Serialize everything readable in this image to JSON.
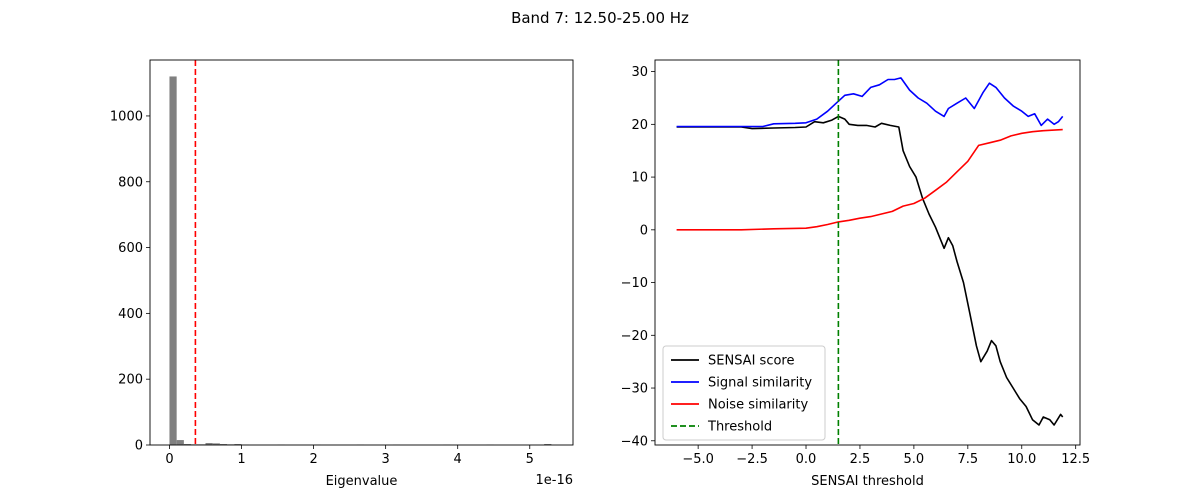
{
  "figure": {
    "title": "Band 7: 12.50-25.00 Hz"
  },
  "chart_data": [
    {
      "type": "bar",
      "subtype": "histogram",
      "xlabel": "Eigenvalue",
      "x_offset_label": "1e-16",
      "ylabel": "",
      "xlim": [
        -0.27,
        5.6
      ],
      "ylim": [
        0,
        1170
      ],
      "xticks": [
        0,
        1,
        2,
        3,
        4,
        5
      ],
      "yticks": [
        0,
        200,
        400,
        600,
        800,
        1000
      ],
      "bin_width": 0.1,
      "bar_color": "#808080",
      "bins": [
        {
          "x": 0.0,
          "count": 1120
        },
        {
          "x": 0.1,
          "count": 15
        },
        {
          "x": 0.2,
          "count": 3
        },
        {
          "x": 0.3,
          "count": 2
        },
        {
          "x": 0.4,
          "count": 2
        },
        {
          "x": 0.5,
          "count": 6
        },
        {
          "x": 0.6,
          "count": 5
        },
        {
          "x": 0.7,
          "count": 3
        },
        {
          "x": 0.8,
          "count": 2
        },
        {
          "x": 0.9,
          "count": 3
        },
        {
          "x": 1.0,
          "count": 1
        },
        {
          "x": 1.5,
          "count": 1
        },
        {
          "x": 2.0,
          "count": 1
        },
        {
          "x": 2.6,
          "count": 1
        },
        {
          "x": 3.1,
          "count": 1
        },
        {
          "x": 3.8,
          "count": 1
        },
        {
          "x": 4.4,
          "count": 1
        },
        {
          "x": 5.2,
          "count": 3
        }
      ],
      "threshold": {
        "x": 0.36,
        "color": "#ff0000",
        "style": "dashed"
      },
      "grid": false
    },
    {
      "type": "line",
      "xlabel": "SENSAI threshold",
      "ylabel": "",
      "xlim": [
        -7.0,
        12.7
      ],
      "ylim": [
        -40.8,
        32.2
      ],
      "xticks": [
        -5.0,
        -2.5,
        0.0,
        2.5,
        5.0,
        7.5,
        10.0,
        12.5
      ],
      "xtick_labels": [
        "−5.0",
        "−2.5",
        "0.0",
        "2.5",
        "5.0",
        "7.5",
        "10.0",
        "12.5"
      ],
      "yticks": [
        -40,
        -30,
        -20,
        -10,
        0,
        10,
        20,
        30
      ],
      "ytick_labels": [
        "−40",
        "−30",
        "−20",
        "−10",
        "0",
        "10",
        "20",
        "30"
      ],
      "legend_position": "lower-left",
      "grid": false,
      "series": [
        {
          "name": "SENSAI score",
          "color": "#000000",
          "points": [
            [
              -6.0,
              19.5
            ],
            [
              -4.0,
              19.5
            ],
            [
              -3.0,
              19.5
            ],
            [
              -2.5,
              19.2
            ],
            [
              -1.5,
              19.3
            ],
            [
              -0.5,
              19.4
            ],
            [
              0.0,
              19.5
            ],
            [
              0.4,
              20.5
            ],
            [
              0.8,
              20.3
            ],
            [
              1.2,
              20.8
            ],
            [
              1.5,
              21.5
            ],
            [
              1.8,
              21.0
            ],
            [
              2.0,
              20.0
            ],
            [
              2.4,
              19.8
            ],
            [
              2.8,
              19.8
            ],
            [
              3.2,
              19.5
            ],
            [
              3.5,
              20.2
            ],
            [
              3.9,
              19.8
            ],
            [
              4.3,
              19.5
            ],
            [
              4.5,
              15.0
            ],
            [
              4.8,
              12.0
            ],
            [
              5.1,
              10.0
            ],
            [
              5.4,
              6.0
            ],
            [
              5.7,
              3.0
            ],
            [
              6.0,
              0.5
            ],
            [
              6.4,
              -3.5
            ],
            [
              6.6,
              -1.5
            ],
            [
              6.8,
              -3.0
            ],
            [
              7.0,
              -6.0
            ],
            [
              7.3,
              -10.0
            ],
            [
              7.6,
              -16.0
            ],
            [
              7.9,
              -22.0
            ],
            [
              8.1,
              -25.0
            ],
            [
              8.4,
              -23.0
            ],
            [
              8.6,
              -21.0
            ],
            [
              8.8,
              -22.0
            ],
            [
              9.0,
              -25.0
            ],
            [
              9.3,
              -28.0
            ],
            [
              9.6,
              -30.0
            ],
            [
              9.9,
              -32.0
            ],
            [
              10.2,
              -33.5
            ],
            [
              10.5,
              -36.0
            ],
            [
              10.8,
              -37.0
            ],
            [
              11.0,
              -35.5
            ],
            [
              11.3,
              -36.0
            ],
            [
              11.5,
              -37.0
            ],
            [
              11.8,
              -35.0
            ],
            [
              11.9,
              -35.5
            ]
          ]
        },
        {
          "name": "Signal similarity",
          "color": "#0000ff",
          "points": [
            [
              -6.0,
              19.6
            ],
            [
              -4.0,
              19.6
            ],
            [
              -2.0,
              19.6
            ],
            [
              -1.5,
              20.1
            ],
            [
              -0.5,
              20.2
            ],
            [
              0.0,
              20.3
            ],
            [
              0.5,
              21.0
            ],
            [
              1.0,
              22.5
            ],
            [
              1.4,
              24.0
            ],
            [
              1.8,
              25.5
            ],
            [
              2.2,
              25.8
            ],
            [
              2.6,
              25.3
            ],
            [
              3.0,
              27.0
            ],
            [
              3.4,
              27.5
            ],
            [
              3.8,
              28.5
            ],
            [
              4.1,
              28.5
            ],
            [
              4.4,
              28.8
            ],
            [
              4.8,
              26.5
            ],
            [
              5.2,
              25.0
            ],
            [
              5.6,
              24.0
            ],
            [
              6.0,
              22.5
            ],
            [
              6.4,
              21.5
            ],
            [
              6.6,
              23.0
            ],
            [
              7.0,
              24.0
            ],
            [
              7.4,
              25.0
            ],
            [
              7.8,
              23.0
            ],
            [
              8.2,
              26.0
            ],
            [
              8.5,
              27.8
            ],
            [
              8.8,
              27.0
            ],
            [
              9.2,
              25.0
            ],
            [
              9.6,
              23.5
            ],
            [
              10.0,
              22.5
            ],
            [
              10.3,
              21.5
            ],
            [
              10.6,
              22.0
            ],
            [
              10.9,
              19.8
            ],
            [
              11.2,
              21.0
            ],
            [
              11.5,
              20.0
            ],
            [
              11.7,
              20.5
            ],
            [
              11.9,
              21.5
            ]
          ]
        },
        {
          "name": "Noise similarity",
          "color": "#ff0000",
          "points": [
            [
              -6.0,
              0.0
            ],
            [
              -3.0,
              0.0
            ],
            [
              -1.5,
              0.2
            ],
            [
              0.0,
              0.3
            ],
            [
              0.5,
              0.6
            ],
            [
              1.0,
              1.0
            ],
            [
              1.5,
              1.5
            ],
            [
              2.0,
              1.8
            ],
            [
              2.5,
              2.2
            ],
            [
              3.0,
              2.5
            ],
            [
              3.5,
              3.0
            ],
            [
              4.0,
              3.5
            ],
            [
              4.5,
              4.5
            ],
            [
              5.0,
              5.0
            ],
            [
              5.5,
              6.0
            ],
            [
              6.0,
              7.5
            ],
            [
              6.5,
              9.0
            ],
            [
              7.0,
              11.0
            ],
            [
              7.5,
              13.0
            ],
            [
              8.0,
              16.0
            ],
            [
              8.5,
              16.5
            ],
            [
              9.0,
              17.0
            ],
            [
              9.5,
              17.8
            ],
            [
              10.0,
              18.3
            ],
            [
              10.5,
              18.6
            ],
            [
              11.0,
              18.8
            ],
            [
              11.9,
              19.0
            ]
          ]
        }
      ],
      "threshold": {
        "name": "Threshold",
        "x": 1.5,
        "color": "#008000",
        "style": "dashed"
      }
    }
  ]
}
